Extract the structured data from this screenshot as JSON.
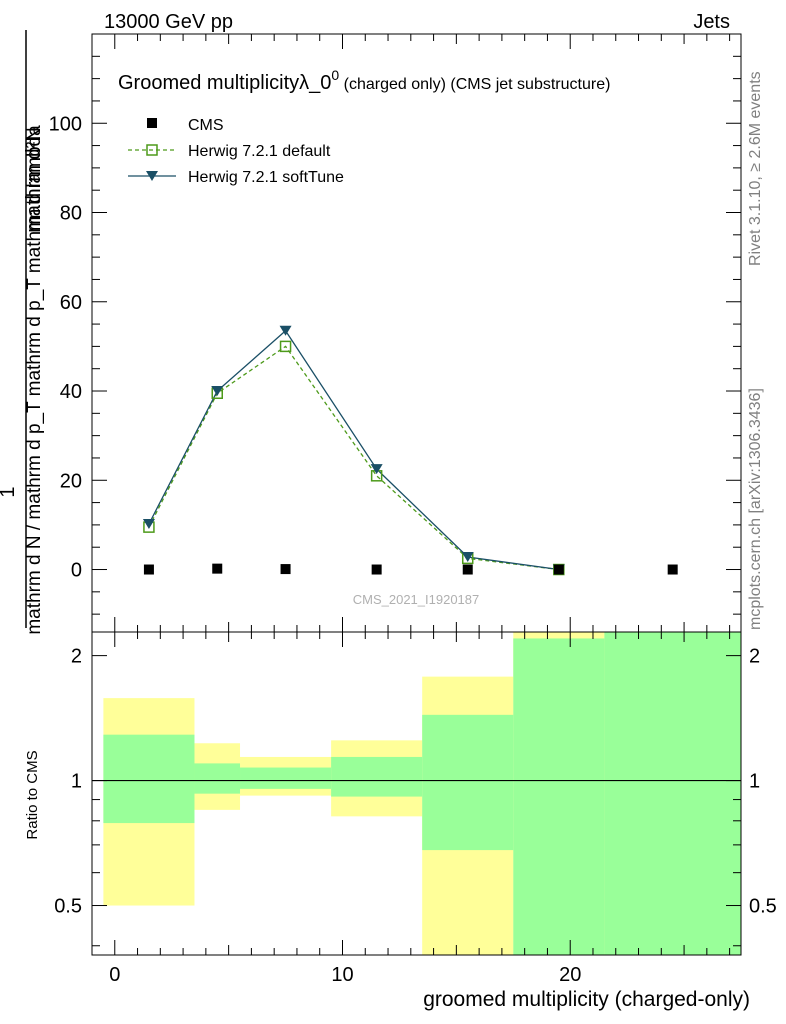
{
  "header": {
    "left": "13000 GeV pp",
    "right": "Jets"
  },
  "side_labels": {
    "rivet": "Rivet 3.1.10, ≥ 2.6M events",
    "mcplots": "mcplots.cern.ch [arXiv:1306.3436]"
  },
  "watermark": "CMS_2021_I1920187",
  "colors": {
    "data": "#000000",
    "herwig_default": "#4d9a1a",
    "herwig_soft": "#1a4f66",
    "band_yellow": "#ffff99",
    "band_green": "#99ff99"
  },
  "chart_data": [
    {
      "type": "line",
      "title_main": "Groomed multiplicityλ_0",
      "title_sup": "0",
      "title_sub": " (charged only) (CMS jet substructure)",
      "ylabel_top": "mathrm d²N",
      "ylabel_bottom": "mathrm d N / mathrm d p_T mathrm d p_T mathrm d lambda",
      "ylabel_num": "1",
      "ylim": [
        -14,
        120
      ],
      "yticks": [
        0,
        20,
        40,
        60,
        80,
        100
      ],
      "xlim": [
        -1,
        27.5
      ],
      "legend": [
        "CMS",
        "Herwig 7.2.1 default",
        "Herwig 7.2.1 softTune"
      ],
      "series": [
        {
          "name": "CMS",
          "x": [
            1.5,
            4.5,
            7.5,
            11.5,
            15.5,
            19.5,
            24.5
          ],
          "values": [
            0,
            0.2,
            0.1,
            0,
            0,
            0,
            0
          ]
        },
        {
          "name": "Herwig 7.2.1 default",
          "x": [
            1.5,
            4.5,
            7.5,
            11.5,
            15.5,
            19.5
          ],
          "values": [
            9.5,
            39.5,
            50,
            21,
            2.5,
            0
          ]
        },
        {
          "name": "Herwig 7.2.1 softTune",
          "x": [
            1.5,
            4.5,
            7.5,
            11.5,
            15.5,
            19.5
          ],
          "values": [
            10.2,
            40,
            53.5,
            22.5,
            2.8,
            0
          ]
        }
      ]
    },
    {
      "type": "area",
      "ylabel": "Ratio to CMS",
      "xlabel": "groomed multiplicity (charged-only)",
      "ylim": [
        0.38,
        2.28
      ],
      "yticks": [
        0.5,
        1,
        2
      ],
      "ytick_labels": [
        "0.5",
        "1",
        "2"
      ],
      "xlim": [
        -1,
        27.5
      ],
      "xticks": [
        0,
        10,
        20
      ],
      "xtick_labels": [
        "0",
        "10",
        "20"
      ],
      "reference_line": 1,
      "bins": [
        {
          "x0": -0.5,
          "x1": 3.5,
          "yellow": [
            0.5,
            1.58
          ],
          "green": [
            0.79,
            1.29
          ]
        },
        {
          "x0": 3.5,
          "x1": 5.5,
          "yellow": [
            0.85,
            1.23
          ],
          "green": [
            0.93,
            1.1
          ]
        },
        {
          "x0": 5.5,
          "x1": 9.5,
          "yellow": [
            0.92,
            1.14
          ],
          "green": [
            0.955,
            1.075
          ]
        },
        {
          "x0": 9.5,
          "x1": 13.5,
          "yellow": [
            0.82,
            1.25
          ],
          "green": [
            0.915,
            1.14
          ]
        },
        {
          "x0": 13.5,
          "x1": 17.5,
          "yellow": [
            0.38,
            1.78
          ],
          "green": [
            0.68,
            1.44
          ]
        },
        {
          "x0": 17.5,
          "x1": 21.5,
          "yellow": [
            0.38,
            2.28
          ],
          "green": [
            0.38,
            2.2
          ]
        },
        {
          "x0": 21.5,
          "x1": 27.5,
          "yellow": [
            0.38,
            2.28
          ],
          "green": [
            0.38,
            2.28
          ]
        }
      ]
    }
  ]
}
